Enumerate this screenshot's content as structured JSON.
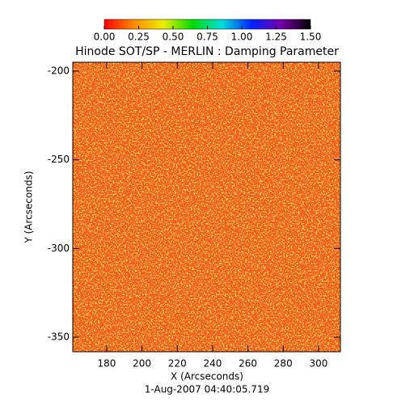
{
  "chart_data": {
    "type": "heatmap",
    "title": "Hinode SOT/SP - MERLIN : Damping Parameter",
    "xlabel": "X (Arcseconds)",
    "ylabel": "Y (Arcseconds)",
    "caption": "1-Aug-2007 04:40:05.719",
    "xlim": [
      160.8,
      312.4
    ],
    "ylim": [
      -358.2,
      -195
    ],
    "xticks": [
      180,
      200,
      220,
      240,
      260,
      280,
      300
    ],
    "yticks": [
      -350,
      -300,
      -250,
      -200
    ],
    "colorbar": {
      "clim": [
        0,
        1.5
      ],
      "ticks": [
        {
          "value": 0,
          "label": "0.00"
        },
        {
          "value": 0.25,
          "label": "0.25"
        },
        {
          "value": 0.5,
          "label": "0.50"
        },
        {
          "value": 0.75,
          "label": "0.75"
        },
        {
          "value": 1,
          "label": "1.00"
        },
        {
          "value": 1.25,
          "label": "1.25"
        },
        {
          "value": 1.5,
          "label": "1.50"
        }
      ],
      "colormap": [
        "#ff0000",
        "#ff8800",
        "#eeee00",
        "#00dd00",
        "#00dddd",
        "#0022ff",
        "#7700aa",
        "#000000"
      ]
    }
  }
}
